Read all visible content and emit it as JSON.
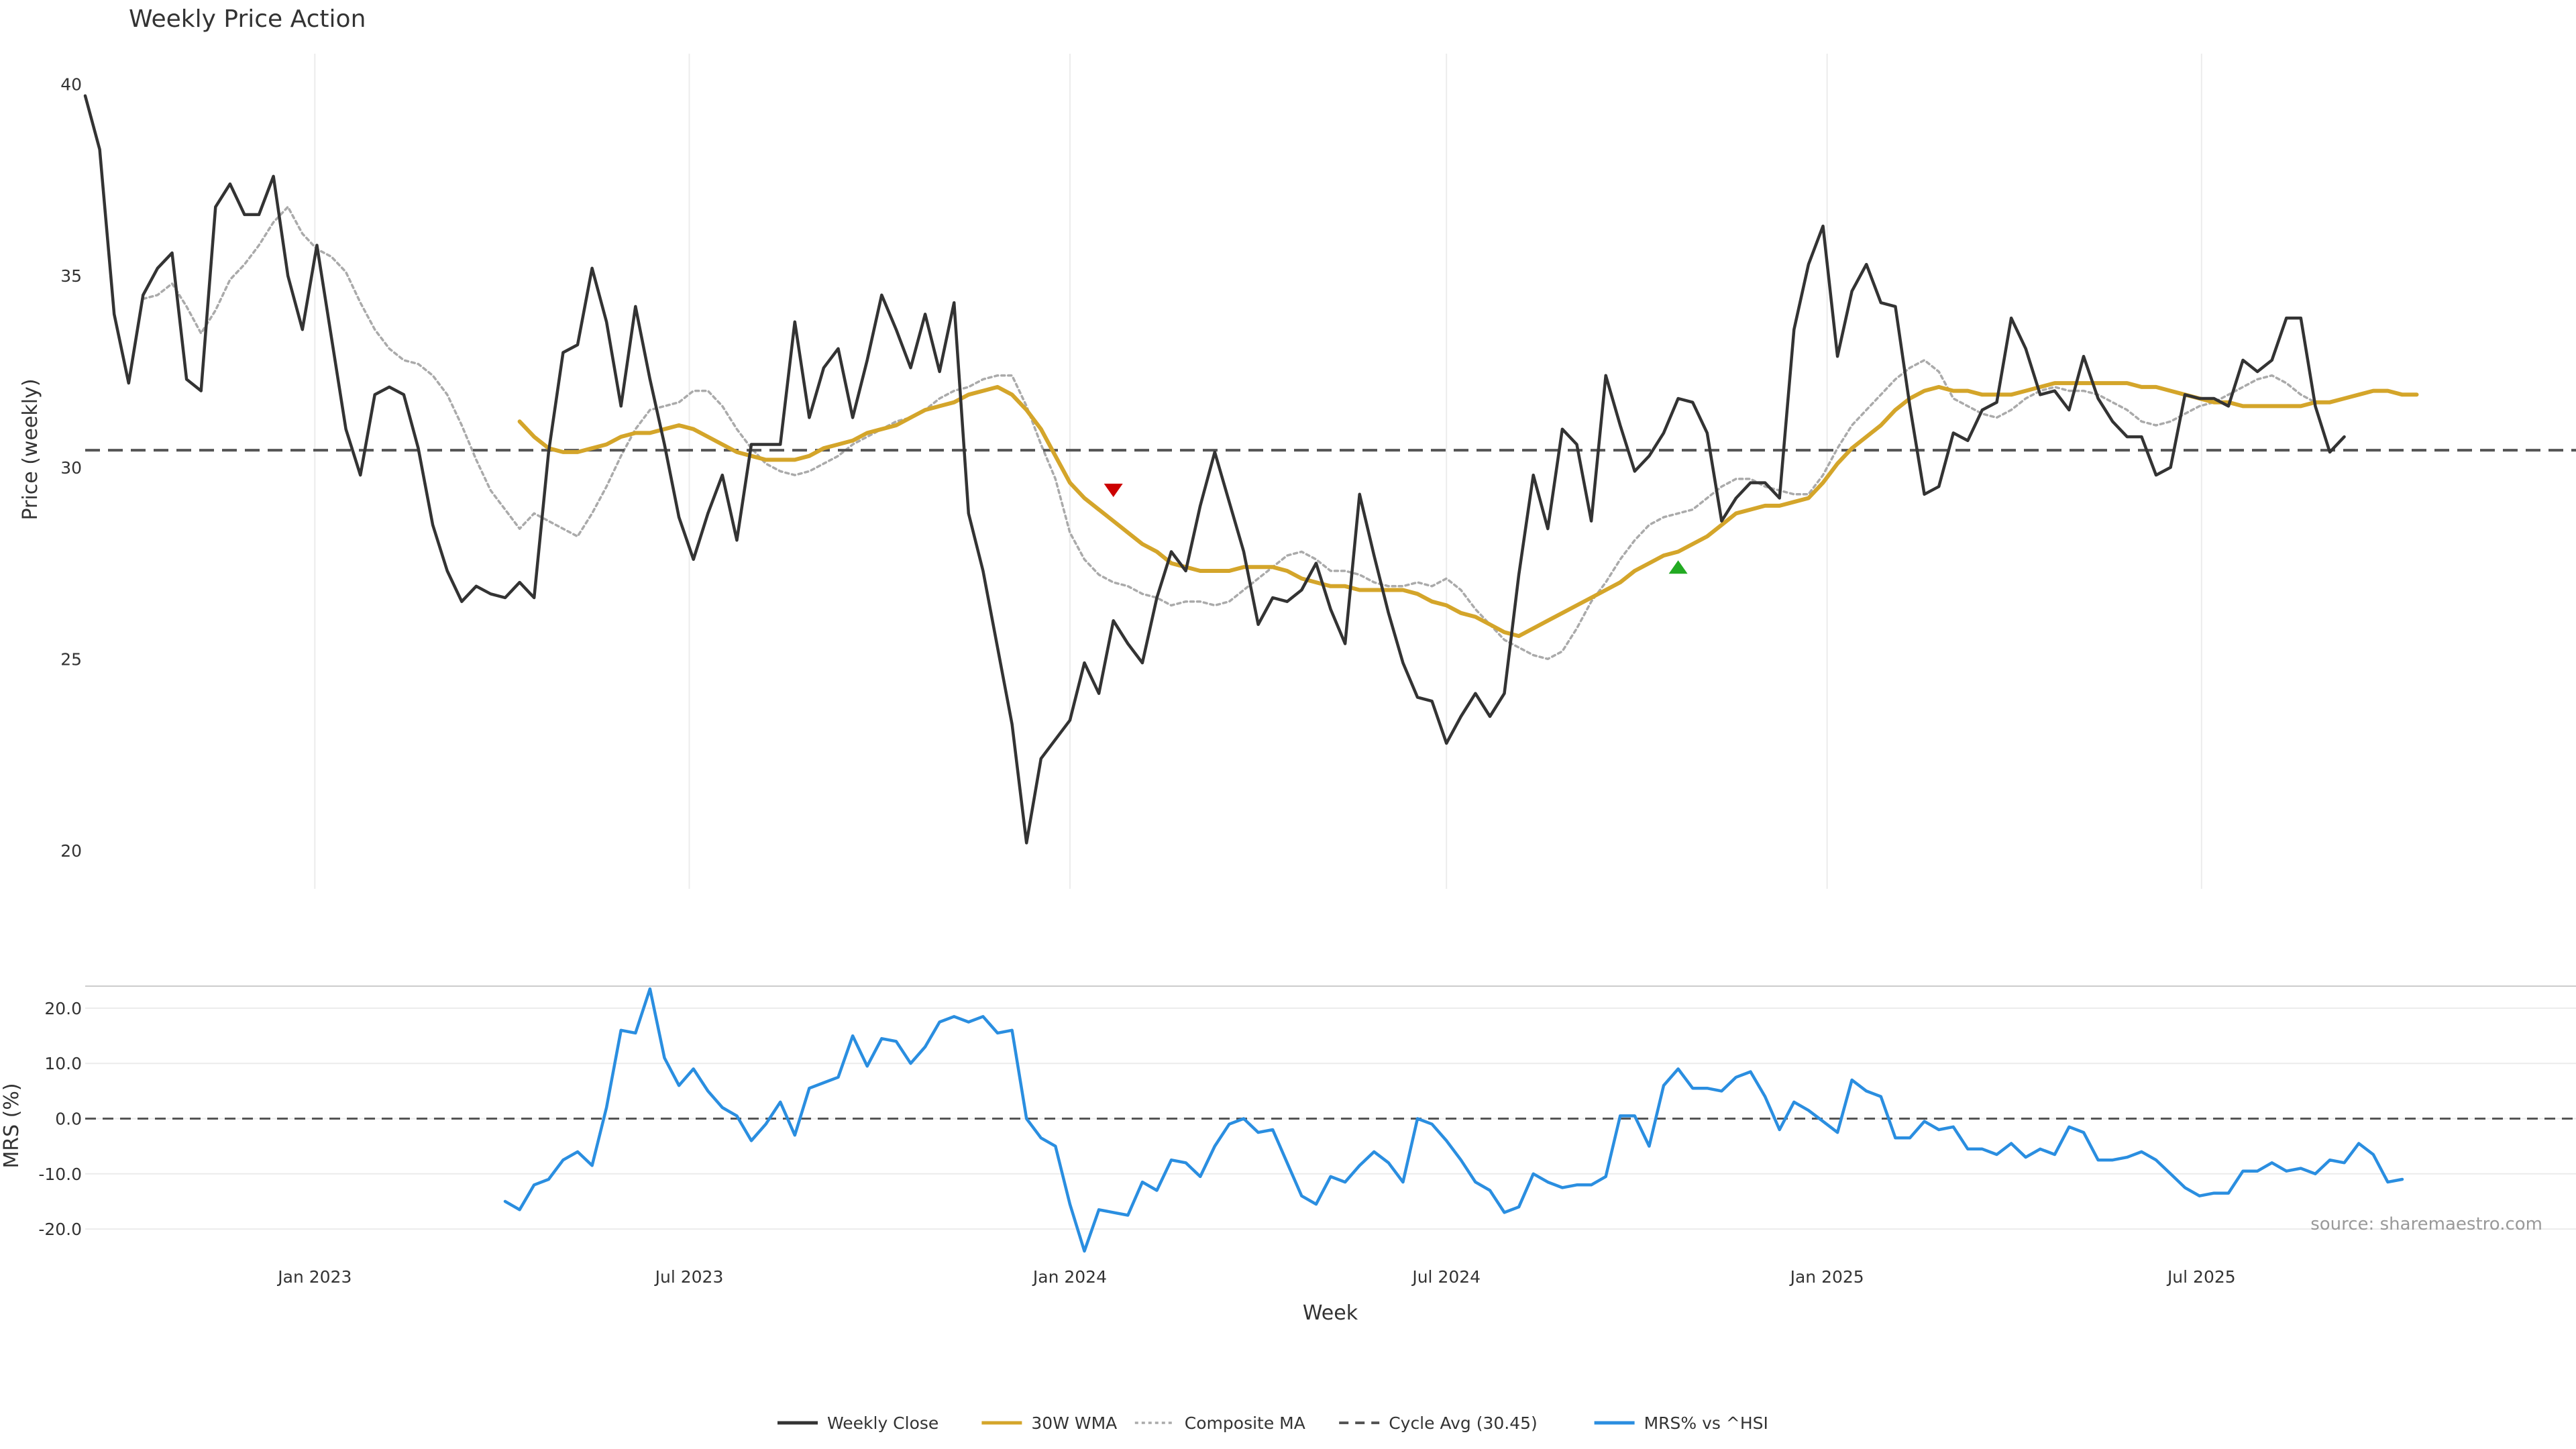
{
  "chart_data": [
    {
      "type": "line",
      "title": "Weekly Price Action",
      "xlabel": "",
      "ylabel": "Price (weekly)",
      "ylim": [
        19,
        40.8
      ],
      "yticks": [
        20,
        25,
        30,
        35,
        40
      ],
      "x_date_range": [
        "2022-09-12",
        "2025-12-29"
      ],
      "xticks": [
        {
          "date": "2023-01-01",
          "label": "Jan 2023"
        },
        {
          "date": "2023-07-01",
          "label": "Jul 2023"
        },
        {
          "date": "2024-01-01",
          "label": "Jan 2024"
        },
        {
          "date": "2024-07-01",
          "label": "Jul 2024"
        },
        {
          "date": "2025-01-01",
          "label": "Jan 2025"
        },
        {
          "date": "2025-07-01",
          "label": "Jul 2025"
        }
      ],
      "grid": "vertical",
      "series": [
        {
          "name": "Weekly Close",
          "color": "#333333",
          "style": "solid",
          "start_date": "2022-09-12",
          "values": [
            39.7,
            38.3,
            34.0,
            32.2,
            34.5,
            35.2,
            35.6,
            32.3,
            32.0,
            36.8,
            37.4,
            36.6,
            36.6,
            37.6,
            35.0,
            33.6,
            35.8,
            33.4,
            31.0,
            29.8,
            31.9,
            32.1,
            31.9,
            30.5,
            28.5,
            27.3,
            26.5,
            26.9,
            26.7,
            26.6,
            27.0,
            26.6,
            30.4,
            33.0,
            33.2,
            35.2,
            33.8,
            31.6,
            34.2,
            32.3,
            30.6,
            28.7,
            27.6,
            28.8,
            29.8,
            28.1,
            30.6,
            30.6,
            30.6,
            33.8,
            31.3,
            32.6,
            33.1,
            31.3,
            32.8,
            34.5,
            33.6,
            32.6,
            34.0,
            32.5,
            34.3,
            28.8,
            27.3,
            25.3,
            23.3,
            20.2,
            22.4,
            22.9,
            23.4,
            24.9,
            24.1,
            26.0,
            25.4,
            24.9,
            26.6,
            27.8,
            27.3,
            29.0,
            30.4,
            29.1,
            27.8,
            25.9,
            26.6,
            26.5,
            26.8,
            27.5,
            26.3,
            25.4,
            29.3,
            27.7,
            26.2,
            24.9,
            24.0,
            23.9,
            22.8,
            23.5,
            24.1,
            23.5,
            24.1,
            27.2,
            29.8,
            28.4,
            31.0,
            30.6,
            28.6,
            32.4,
            31.1,
            29.9,
            30.3,
            30.9,
            31.8,
            31.7,
            30.9,
            28.6,
            29.2,
            29.6,
            29.6,
            29.2,
            33.6,
            35.3,
            36.3,
            32.9,
            34.6,
            35.3,
            34.3,
            34.2,
            31.6,
            29.3,
            29.5,
            30.9,
            30.7,
            31.5,
            31.7,
            33.9,
            33.1,
            31.9,
            32.0,
            31.5,
            32.9,
            31.8,
            31.2,
            30.8,
            30.8,
            29.8,
            30.0,
            31.9,
            31.8,
            31.8,
            31.6,
            32.8,
            32.5,
            32.8,
            33.9,
            33.9,
            31.6,
            30.4,
            30.8
          ]
        },
        {
          "name": "30W WMA",
          "color": "#d4a52a",
          "style": "solid",
          "start_date": "2023-04-10",
          "values": [
            31.2,
            30.8,
            30.5,
            30.4,
            30.4,
            30.5,
            30.6,
            30.8,
            30.9,
            30.9,
            31.0,
            31.1,
            31.0,
            30.8,
            30.6,
            30.4,
            30.3,
            30.2,
            30.2,
            30.2,
            30.3,
            30.5,
            30.6,
            30.7,
            30.9,
            31.0,
            31.1,
            31.3,
            31.5,
            31.6,
            31.7,
            31.9,
            32.0,
            32.1,
            31.9,
            31.5,
            31.0,
            30.3,
            29.6,
            29.2,
            28.9,
            28.6,
            28.3,
            28.0,
            27.8,
            27.5,
            27.4,
            27.3,
            27.3,
            27.3,
            27.4,
            27.4,
            27.4,
            27.3,
            27.1,
            27.0,
            26.9,
            26.9,
            26.8,
            26.8,
            26.8,
            26.8,
            26.7,
            26.5,
            26.4,
            26.2,
            26.1,
            25.9,
            25.7,
            25.6,
            25.8,
            26.0,
            26.2,
            26.4,
            26.6,
            26.8,
            27.0,
            27.3,
            27.5,
            27.7,
            27.8,
            28.0,
            28.2,
            28.5,
            28.8,
            28.9,
            29.0,
            29.0,
            29.1,
            29.2,
            29.6,
            30.1,
            30.5,
            30.8,
            31.1,
            31.5,
            31.8,
            32.0,
            32.1,
            32.0,
            32.0,
            31.9,
            31.9,
            31.9,
            32.0,
            32.1,
            32.2,
            32.2,
            32.2,
            32.2,
            32.2,
            32.2,
            32.1,
            32.1,
            32.0,
            31.9,
            31.8,
            31.7,
            31.7,
            31.6,
            31.6,
            31.6,
            31.6,
            31.6,
            31.7,
            31.7,
            31.8,
            31.9,
            32.0,
            32.0,
            31.9,
            31.9
          ]
        },
        {
          "name": "Composite MA",
          "color": "#aaaaaa",
          "style": "dotted",
          "start_date": "2022-10-10",
          "values": [
            34.4,
            34.5,
            34.8,
            34.2,
            33.5,
            34.1,
            34.9,
            35.3,
            35.8,
            36.4,
            36.8,
            36.1,
            35.7,
            35.5,
            35.1,
            34.3,
            33.6,
            33.1,
            32.8,
            32.7,
            32.4,
            31.9,
            31.1,
            30.2,
            29.4,
            28.9,
            28.4,
            28.8,
            28.6,
            28.4,
            28.2,
            28.8,
            29.5,
            30.3,
            31.0,
            31.5,
            31.6,
            31.7,
            32.0,
            32.0,
            31.6,
            31.0,
            30.5,
            30.1,
            29.9,
            29.8,
            29.9,
            30.1,
            30.3,
            30.6,
            30.8,
            31.0,
            31.2,
            31.3,
            31.5,
            31.8,
            32.0,
            32.1,
            32.3,
            32.4,
            32.4,
            31.6,
            30.6,
            29.7,
            28.3,
            27.6,
            27.2,
            27.0,
            26.9,
            26.7,
            26.6,
            26.4,
            26.5,
            26.5,
            26.4,
            26.5,
            26.8,
            27.1,
            27.4,
            27.7,
            27.8,
            27.6,
            27.3,
            27.3,
            27.2,
            27.0,
            26.9,
            26.9,
            27.0,
            26.9,
            27.1,
            26.8,
            26.3,
            25.9,
            25.5,
            25.3,
            25.1,
            25.0,
            25.2,
            25.8,
            26.5,
            27.0,
            27.6,
            28.1,
            28.5,
            28.7,
            28.8,
            28.9,
            29.2,
            29.5,
            29.7,
            29.7,
            29.5,
            29.4,
            29.3,
            29.3,
            29.8,
            30.5,
            31.1,
            31.5,
            31.9,
            32.3,
            32.6,
            32.8,
            32.5,
            31.8,
            31.6,
            31.4,
            31.3,
            31.5,
            31.8,
            32.0,
            32.1,
            32.0,
            32.0,
            31.9,
            31.7,
            31.5,
            31.2,
            31.1,
            31.2,
            31.4,
            31.6,
            31.7,
            31.9,
            32.1,
            32.3,
            32.4,
            32.2,
            31.9,
            31.7
          ]
        },
        {
          "name": "Cycle Avg (30.45)",
          "color": "#555555",
          "style": "dashed",
          "value": 30.45
        }
      ],
      "annotations": [
        {
          "type": "down-triangle",
          "date": "2024-01-22",
          "value": 29.4,
          "color": "#cc0000"
        },
        {
          "type": "up-triangle",
          "date": "2024-10-21",
          "value": 27.4,
          "color": "#22aa22"
        }
      ]
    },
    {
      "type": "line",
      "title": "",
      "xlabel": "Week",
      "ylabel": "MRS (%)",
      "ylim": [
        -24,
        24
      ],
      "yticks": [
        -20.0,
        -10.0,
        0.0,
        10.0,
        20.0
      ],
      "ytick_labels": [
        "-20.0",
        "-10.0",
        "0.0",
        "10.0",
        "20.0"
      ],
      "zero_line": "dashed",
      "grid": "horizontal",
      "series": [
        {
          "name": "MRS% vs ^HSI",
          "color": "#2a8ee0",
          "style": "solid",
          "start_date": "2023-04-03",
          "values": [
            -15.0,
            -16.5,
            -12.0,
            -11.0,
            -7.5,
            -6.0,
            -8.5,
            2.0,
            16.0,
            15.5,
            23.5,
            11.0,
            6.0,
            9.0,
            5.0,
            2.0,
            0.5,
            -4.0,
            -1.0,
            3.0,
            -3.0,
            5.5,
            6.5,
            7.5,
            15.0,
            9.5,
            14.5,
            14.0,
            10.0,
            13.0,
            17.5,
            18.5,
            17.5,
            18.5,
            15.5,
            16.0,
            0.0,
            -3.5,
            -5.0,
            -15.5,
            -24.0,
            -16.5,
            -17.0,
            -17.5,
            -11.5,
            -13.0,
            -7.5,
            -8.0,
            -10.5,
            -5.0,
            -1.0,
            0.0,
            -2.5,
            -2.0,
            -8.0,
            -14.0,
            -15.5,
            -10.5,
            -11.5,
            -8.5,
            -6.0,
            -8.0,
            -11.5,
            0.0,
            -1.0,
            -4.0,
            -7.5,
            -11.5,
            -13.0,
            -17.0,
            -16.0,
            -10.0,
            -11.5,
            -12.5,
            -12.0,
            -12.0,
            -10.5,
            0.5,
            0.5,
            -5.0,
            6.0,
            9.0,
            5.5,
            5.5,
            5.0,
            7.5,
            8.5,
            4.0,
            -2.0,
            3.0,
            1.5,
            -0.5,
            -2.5,
            7.0,
            5.0,
            4.0,
            -3.5,
            -3.5,
            -0.5,
            -2.0,
            -1.5,
            -5.5,
            -5.5,
            -6.5,
            -4.5,
            -7.0,
            -5.5,
            -6.5,
            -1.5,
            -2.5,
            -7.5,
            -7.5,
            -7.0,
            -6.0,
            -7.5,
            -10.0,
            -12.5,
            -14.0,
            -13.5,
            -13.5,
            -9.5,
            -9.5,
            -8.0,
            -9.5,
            -9.0,
            -10.0,
            -7.5,
            -8.0,
            -4.5,
            -6.5,
            -11.5,
            -11.0
          ]
        }
      ],
      "annotation_text": "source: sharemaestro.com",
      "xticks": [
        {
          "date": "2023-01-01",
          "label": "Jan 2023"
        },
        {
          "date": "2023-07-01",
          "label": "Jul 2023"
        },
        {
          "date": "2024-01-01",
          "label": "Jan 2024"
        },
        {
          "date": "2024-07-01",
          "label": "Jul 2024"
        },
        {
          "date": "2025-01-01",
          "label": "Jan 2025"
        },
        {
          "date": "2025-07-01",
          "label": "Jul 2025"
        }
      ]
    }
  ],
  "legend": {
    "placement": "bottom-center",
    "items": [
      {
        "label": "Weekly Close",
        "color": "#333333",
        "style": "solid"
      },
      {
        "label": "30W WMA",
        "color": "#d4a52a",
        "style": "solid"
      },
      {
        "label": "Composite MA",
        "color": "#aaaaaa",
        "style": "dotted"
      },
      {
        "label": "Cycle Avg (30.45)",
        "color": "#555555",
        "style": "dashed"
      },
      {
        "label": "MRS% vs ^HSI",
        "color": "#2a8ee0",
        "style": "solid"
      }
    ]
  }
}
